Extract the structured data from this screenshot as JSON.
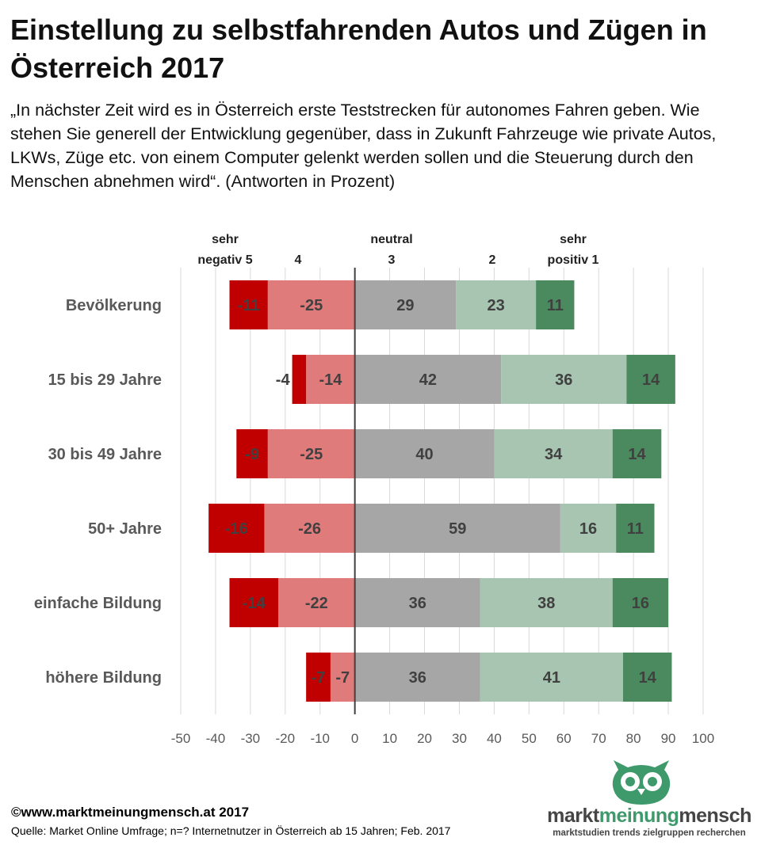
{
  "title": "Einstellung zu selbstfahrenden Autos und Zügen in Österreich 2017",
  "subtitle": "„In nächster Zeit wird es in Österreich erste Teststrecken für autonomes Fahren geben. Wie stehen Sie generell der Entwicklung gegenüber, dass in Zukunft Fahrzeuge wie private Autos, LKWs, Züge etc. von einem Computer gelenkt werden sollen und die Steuerung durch den Menschen abnehmen wird“. (Antworten in Prozent)",
  "chart_data": {
    "type": "bar",
    "orientation": "horizontal",
    "stacked": "diverging",
    "column_headers": [
      {
        "lines": [
          "sehr",
          "negativ 5"
        ]
      },
      {
        "lines": [
          "4"
        ]
      },
      {
        "lines": [
          "neutral",
          "3"
        ]
      },
      {
        "lines": [
          "2"
        ]
      },
      {
        "lines": [
          "sehr",
          "positiv 1"
        ]
      }
    ],
    "categories": [
      "Bevölkerung",
      "15 bis 29 Jahre",
      "30 bis 49 Jahre",
      "50+ Jahre",
      "einfache Bildung",
      "höhere Bildung"
    ],
    "series": [
      {
        "key": "s5",
        "values": [
          -11,
          -4,
          -9,
          -16,
          -14,
          -7
        ],
        "color": "#c00000"
      },
      {
        "key": "s4",
        "values": [
          -25,
          -14,
          -25,
          -26,
          -22,
          -7
        ],
        "color": "#e07b7b"
      },
      {
        "key": "s3",
        "values": [
          29,
          42,
          40,
          59,
          36,
          36
        ],
        "color": "#a6a6a6"
      },
      {
        "key": "s2",
        "values": [
          23,
          36,
          34,
          16,
          38,
          41
        ],
        "color": "#a7c5b1"
      },
      {
        "key": "s1",
        "values": [
          11,
          14,
          14,
          11,
          16,
          14
        ],
        "color": "#4a8a5e"
      }
    ],
    "xlim": [
      -50,
      100
    ],
    "xticks": [
      -50,
      -40,
      -30,
      -20,
      -10,
      0,
      10,
      20,
      30,
      40,
      50,
      60,
      70,
      80,
      90,
      100
    ],
    "grid": true
  },
  "footer": {
    "copyright": "©www.marktmeinungmensch.at 2017",
    "source": "Quelle: Market Online Umfrage; n=? Internetnutzer in Österreich ab 15 Jahren; Feb. 2017"
  },
  "logo": {
    "word_part1": "markt",
    "word_part2": "meinung",
    "word_part3": "mensch",
    "tagline": "marktstudien trends zielgruppen recherchen"
  }
}
